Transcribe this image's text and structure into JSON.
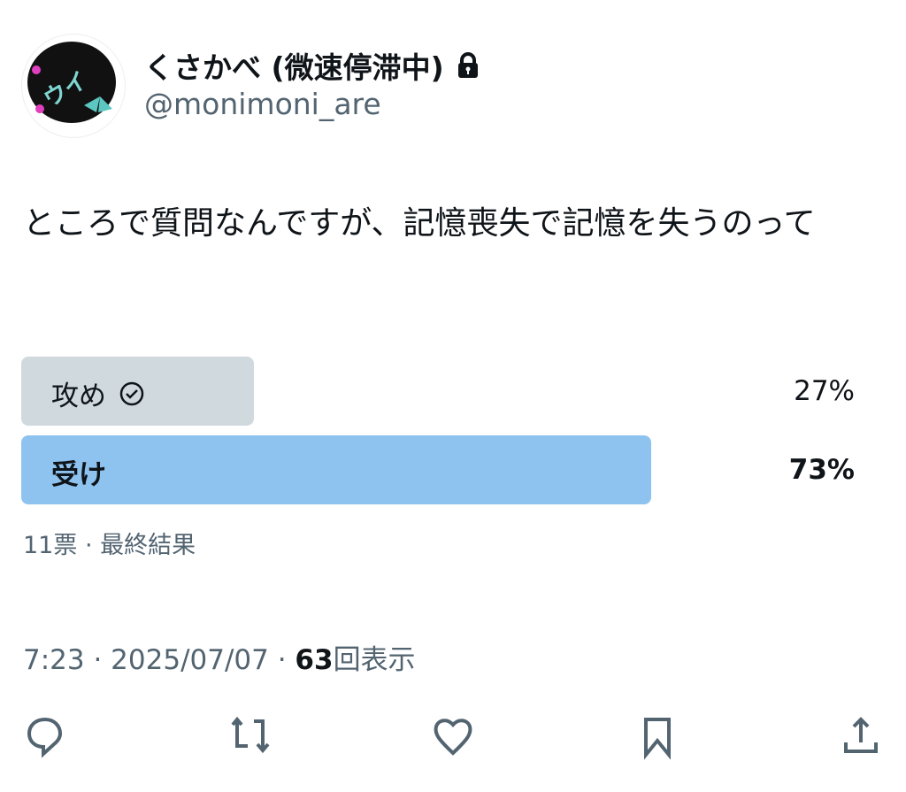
{
  "author": {
    "display_name": "くさかべ (微速停滞中)",
    "handle": "@monimoni_are",
    "locked": true
  },
  "tweet": {
    "text": "ところで質問なんですが、記憶喪失で記憶を失うのって"
  },
  "poll": {
    "options": [
      {
        "label": "攻め",
        "percent_label": "27%",
        "percent": 27,
        "voted": true,
        "winner": false
      },
      {
        "label": "受け",
        "percent_label": "73%",
        "percent": 73,
        "voted": false,
        "winner": true
      }
    ],
    "summary": "11票 · 最終結果",
    "colors": {
      "winner": "#8ec3f0",
      "other": "#cfd9de"
    }
  },
  "meta": {
    "time": "7:23 · 2025/07/07 · ",
    "views": "63",
    "views_label": "回表示"
  },
  "actions": [
    "reply-icon",
    "retweet-icon",
    "like-icon",
    "bookmark-icon",
    "share-icon"
  ]
}
